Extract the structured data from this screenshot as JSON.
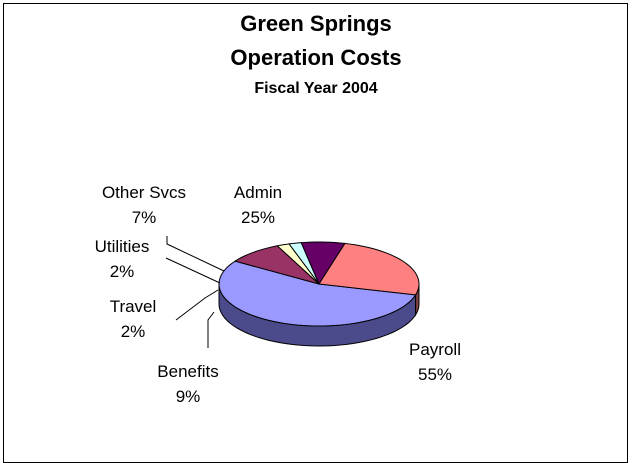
{
  "chart_data": {
    "type": "pie",
    "title": "Green Springs",
    "title_line2": "Operation Costs",
    "subtitle": "Fiscal Year 2004",
    "three_d": true,
    "slices": [
      {
        "label": "Payroll",
        "value": 55,
        "display": "55%",
        "top_color": "#9999ff",
        "side_color": "#4b4b8c"
      },
      {
        "label": "Benefits",
        "value": 9,
        "display": "9%",
        "top_color": "#993366",
        "side_color": "#4a1a33"
      },
      {
        "label": "Travel",
        "value": 2,
        "display": "2%",
        "top_color": "#ffffcc",
        "side_color": "#808066"
      },
      {
        "label": "Utilities",
        "value": 2,
        "display": "2%",
        "top_color": "#ccffff",
        "side_color": "#668080"
      },
      {
        "label": "Other Svcs",
        "value": 7,
        "display": "7%",
        "top_color": "#660066",
        "side_color": "#330033"
      },
      {
        "label": "Admin",
        "value": 25,
        "display": "25%",
        "top_color": "#ff8080",
        "side_color": "#804040"
      }
    ]
  }
}
